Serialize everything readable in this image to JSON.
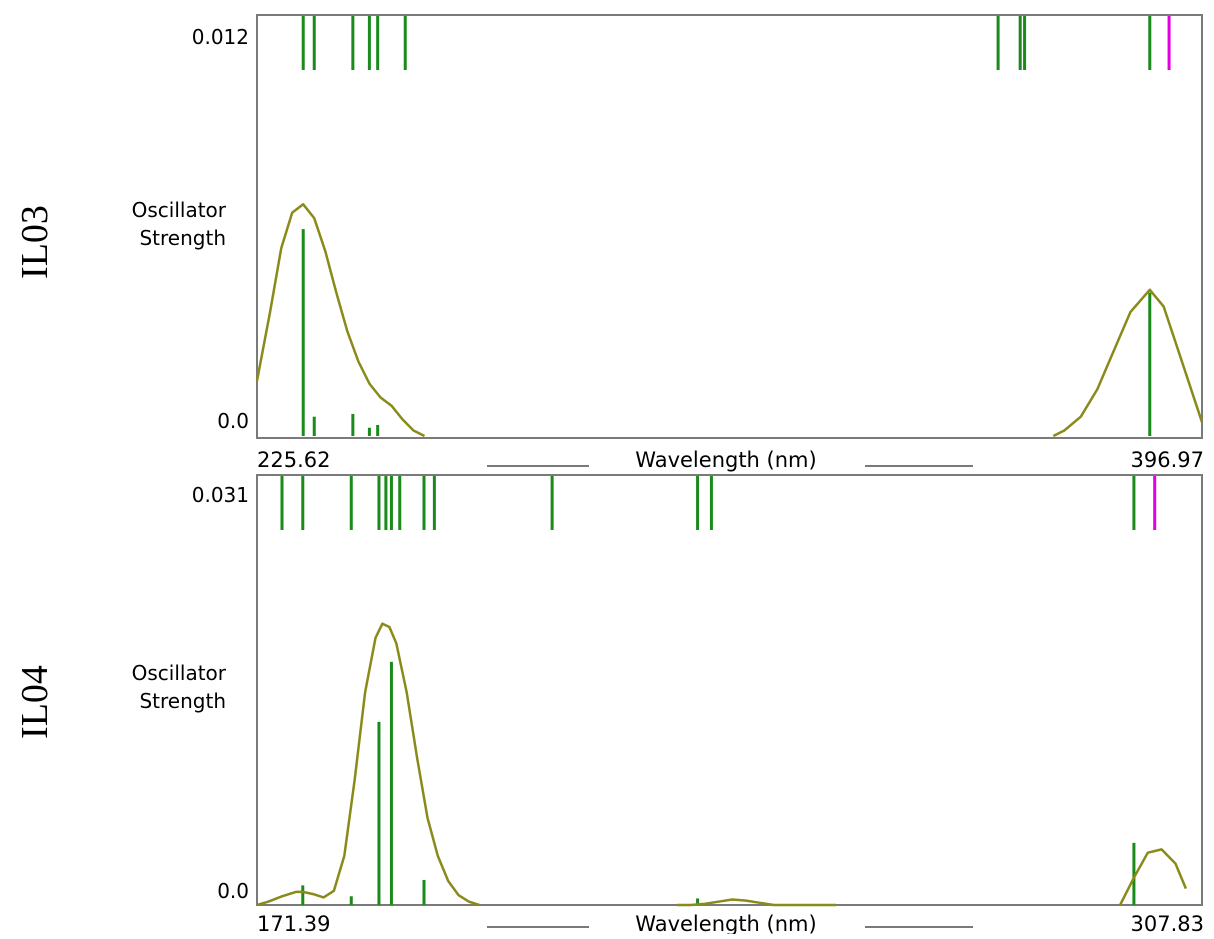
{
  "panels": [
    {
      "side_label": "IL03",
      "ytop_label": "0.012",
      "ybottom_label": "0.0",
      "ylabel_lines": [
        "Oscillator",
        "Strength"
      ],
      "xmin_label": "225.62",
      "xmax_label": "396.97",
      "xlabel": "Wavelength (nm)"
    },
    {
      "side_label": "IL04",
      "ytop_label": "0.031",
      "ybottom_label": "0.0",
      "ylabel_lines": [
        "Oscillator",
        "Strength"
      ],
      "xmin_label": "171.39",
      "xmax_label": "307.83",
      "xlabel": "Wavelength (nm)"
    }
  ],
  "colors": {
    "stick": "#1a8a1a",
    "highlight": "#e000e0",
    "curve": "#8a8a1a",
    "axis": "#7a7a7a"
  },
  "chart_data": [
    {
      "type": "line",
      "title": "IL03",
      "xlabel": "Wavelength (nm)",
      "ylabel": "Oscillator Strength",
      "xlim": [
        225.62,
        396.97
      ],
      "ylim": [
        0.0,
        0.012
      ],
      "sticks": {
        "wavelengths": [
          234.0,
          236.0,
          243.0,
          246.0,
          247.5,
          252.5,
          360.0,
          364.0,
          364.8,
          387.5,
          391.0
        ],
        "strengths": [
          0.0075,
          0.0007,
          0.0008,
          0.0003,
          0.0004,
          0.0,
          0.0,
          0.0,
          0.0,
          0.0052,
          0.0
        ],
        "highlight_index": 10
      },
      "curve": {
        "x": [
          225.62,
          228.0,
          230.0,
          232.0,
          234.0,
          236.0,
          238.0,
          240.0,
          242.0,
          244.0,
          246.0,
          248.0,
          250.0,
          252.0,
          254.0,
          256.0,
          370.0,
          372.0,
          375.0,
          378.0,
          381.0,
          384.0,
          387.5,
          390.0,
          393.0,
          396.97
        ],
        "y": [
          0.002,
          0.0045,
          0.0068,
          0.0081,
          0.0084,
          0.0079,
          0.0067,
          0.0052,
          0.0038,
          0.0027,
          0.0019,
          0.0014,
          0.0011,
          0.0006,
          0.0002,
          0.0,
          0.0,
          0.0002,
          0.0007,
          0.0017,
          0.0031,
          0.0045,
          0.0053,
          0.0047,
          0.0029,
          0.0005
        ]
      }
    },
    {
      "type": "line",
      "title": "IL04",
      "xlabel": "Wavelength (nm)",
      "ylabel": "Oscillator Strength",
      "xlim": [
        171.39,
        307.83
      ],
      "ylim": [
        0.0,
        0.031
      ],
      "sticks": {
        "wavelengths": [
          175.0,
          178.0,
          185.0,
          189.0,
          190.0,
          190.8,
          192.0,
          195.5,
          197.0,
          214.0,
          235.0,
          237.0,
          298.0,
          301.0
        ],
        "strengths": [
          0.0,
          0.0018,
          0.0008,
          0.0168,
          0.0,
          0.0223,
          0.0,
          0.0023,
          0.0,
          0.0,
          0.0006,
          0.0,
          0.0057,
          0.0
        ],
        "highlight_index": 13
      },
      "curve": {
        "x": [
          171.39,
          173.0,
          175.0,
          177.0,
          178.0,
          179.5,
          181.0,
          182.5,
          184.0,
          185.5,
          187.0,
          188.5,
          189.5,
          190.5,
          191.5,
          193.0,
          194.5,
          196.0,
          197.5,
          199.0,
          200.5,
          202.0,
          203.5,
          232.0,
          234.0,
          236.0,
          238.0,
          240.0,
          242.0,
          244.0,
          246.0,
          248.0,
          250.0,
          252.0,
          255.0,
          296.0,
          298.0,
          300.0,
          302.0,
          304.0,
          305.5
        ],
        "y": [
          0.0,
          0.0003,
          0.0008,
          0.0012,
          0.0012,
          0.001,
          0.0007,
          0.0013,
          0.0045,
          0.0115,
          0.0195,
          0.0245,
          0.0258,
          0.0255,
          0.024,
          0.0195,
          0.0135,
          0.008,
          0.0045,
          0.0022,
          0.0009,
          0.0003,
          0.0,
          0.0,
          0.0,
          0.0001,
          0.0003,
          0.0005,
          0.0004,
          0.0002,
          0.0,
          0.0,
          0.0,
          0.0,
          0.0,
          0.0,
          0.0025,
          0.0048,
          0.0051,
          0.0038,
          0.0015
        ]
      }
    }
  ]
}
